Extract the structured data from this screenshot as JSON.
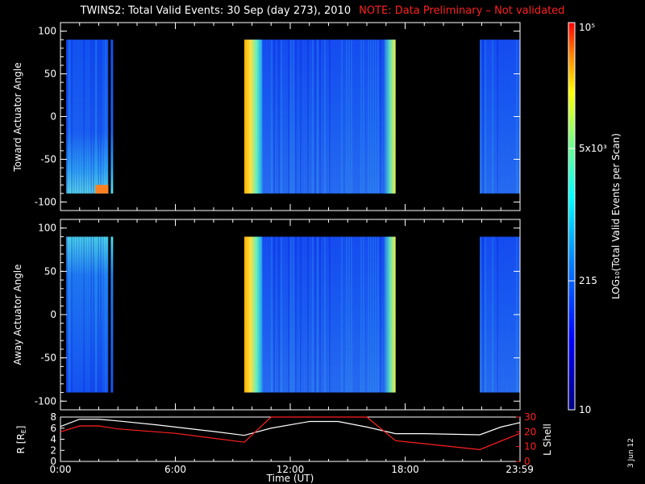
{
  "header": {
    "title": "TWINS2: Total Valid Events: 30 Sep (day 273), 2010",
    "note": "NOTE: Data Preliminary – Not validated"
  },
  "colorbar": {
    "label": "LOG₁₀(Total Valid Events per Scan)",
    "ticks": [
      {
        "label": "10",
        "value": 10
      },
      {
        "label": "215",
        "value": 215
      },
      {
        "label": "5x10³",
        "value": 5000
      },
      {
        "label": "10⁵",
        "value": 100000
      }
    ]
  },
  "chart_data": [
    {
      "type": "heatmap",
      "ylabel": "Toward Actuator Angle",
      "ylim": [
        -110,
        110
      ],
      "yticks": [
        "100",
        "50",
        "0",
        "-50",
        "-100"
      ],
      "xlim_hours": [
        0,
        24
      ],
      "data_blocks_hours": [
        [
          0.3,
          2.75
        ],
        [
          9.6,
          17.5
        ],
        [
          21.9,
          24
        ]
      ],
      "colors": {
        "low": "#0030ff",
        "mid": "#00c8ff",
        "high": "#ffd000",
        "max": "#ff3000"
      }
    },
    {
      "type": "heatmap",
      "ylabel": "Away Actuator Angle",
      "ylim": [
        -110,
        110
      ],
      "yticks": [
        "100",
        "50",
        "0",
        "-50",
        "-100"
      ],
      "xlim_hours": [
        0,
        24
      ],
      "data_blocks_hours": [
        [
          0.3,
          2.75
        ],
        [
          9.6,
          17.5
        ],
        [
          21.9,
          24
        ]
      ]
    },
    {
      "type": "line",
      "ylabel_left": "R [R",
      "ylabel_left_sub": "E",
      "ylabel_left_close": "]",
      "ylabel_right": "L Shell",
      "ylim_left": [
        0,
        8
      ],
      "yticks_left": [
        "8",
        "6",
        "4",
        "2",
        "0"
      ],
      "ylim_right": [
        0,
        30
      ],
      "yticks_right": [
        "30",
        "20",
        "10",
        "0"
      ],
      "xticks": [
        "0:00",
        "6:00",
        "12:00",
        "18:00",
        "23:59"
      ],
      "xlabel": "Time (UT)",
      "series": [
        {
          "color": "#ffffff",
          "x": [
            0,
            1,
            2,
            3,
            5,
            8,
            9.6,
            11,
            13,
            14.5,
            16,
            17.5,
            19,
            21.9,
            23,
            24
          ],
          "y": [
            6.3,
            7.6,
            7.6,
            7.3,
            6.6,
            5.4,
            4.7,
            6.0,
            7.2,
            7.2,
            6.2,
            5.0,
            5.0,
            4.8,
            6.2,
            7.0
          ]
        },
        {
          "color": "#ff2020",
          "x": [
            0,
            1,
            2,
            3,
            6,
            9.6,
            11,
            16,
            17.5,
            21.9,
            24
          ],
          "y": [
            20,
            24,
            24,
            22,
            19,
            13,
            30,
            30,
            14,
            8,
            19
          ]
        }
      ]
    }
  ],
  "footer": {
    "date_stamp": "3 Jun 12"
  }
}
